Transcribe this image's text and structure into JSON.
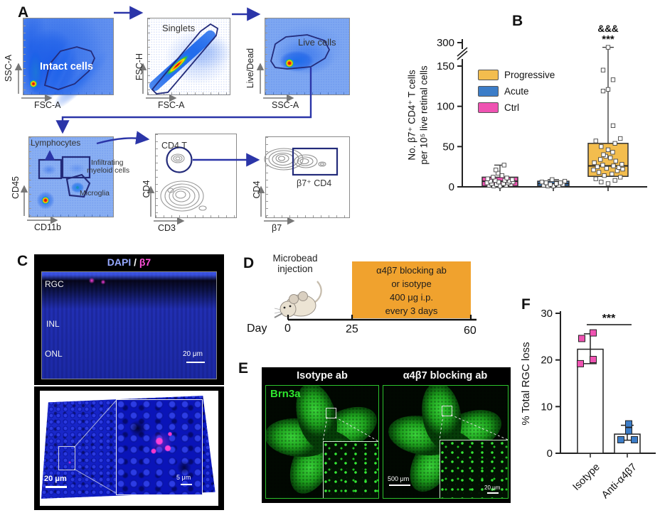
{
  "figure": {
    "panel_labels": {
      "A": "A",
      "B": "B",
      "C": "C",
      "D": "D",
      "E": "E",
      "F": "F"
    }
  },
  "panelA": {
    "plots": [
      {
        "gate": "Intact cells",
        "x": "FSC-A",
        "y": "SSC-A"
      },
      {
        "gate": "Singlets",
        "x": "FSC-A",
        "y": "FSC-H"
      },
      {
        "gate": "Live cells",
        "x": "SSC-A",
        "y": "Live/Dead"
      },
      {
        "gate": "Lymphocytes",
        "gate2a": "Infiltrating",
        "gate2b": "myeloid cells",
        "gate3": "Microglia",
        "x": "CD11b",
        "y": "CD45"
      },
      {
        "gate": "CD4 T",
        "x": "CD3",
        "y": "CD4"
      },
      {
        "gate": "β7⁺ CD4",
        "x": "β7",
        "y": "CD4"
      }
    ]
  },
  "panelB": {
    "ylabel_line1": "No. β7⁺ CD4⁺ T cells",
    "ylabel_line2": "per 10⁵ live retinal cells",
    "annotation_amp": "&&&",
    "annotation_star": "***"
  },
  "panelC": {
    "title_dapi": "DAPI",
    "title_sep": " / ",
    "title_b7": "β7",
    "layer_rgc": "RGC",
    "layer_inl": "INL",
    "layer_onl": "ONL",
    "scale_top": "20 μm",
    "scale_bottom": "20 μm",
    "scale_inset": "5 μm"
  },
  "panelD": {
    "injection": "Microbead\ninjection",
    "box_line1": "α4β7 blocking ab",
    "box_line2": "or isotype",
    "box_line3": "400 μg i.p.",
    "box_line4": "every 3 days",
    "axis": "Day",
    "t0": "0",
    "t1": "25",
    "t2": "60"
  },
  "panelE": {
    "left_title": "Isotype ab",
    "right_title": "α4β7 blocking ab",
    "stain": "Brn3a",
    "scale_main": "500 μm",
    "scale_inset": "20 μm"
  },
  "chart_data": [
    {
      "panel": "B",
      "type": "box",
      "ylabel": "No. β7⁺ CD4⁺ T cells per 10⁵ live retinal cells",
      "yticks": [
        0,
        50,
        100,
        150,
        300
      ],
      "axis_break_between": [
        150,
        300
      ],
      "legend": [
        {
          "label": "Progressive",
          "color": "#f3bd4e"
        },
        {
          "label": "Acute",
          "color": "#3c7dc8"
        },
        {
          "label": "Ctrl",
          "color": "#ef53b2"
        }
      ],
      "groups": [
        {
          "name": "Ctrl",
          "color": "#ef53b2",
          "q1": 1,
          "median": 7,
          "q3": 12,
          "whisker_low": 0,
          "whisker_high": 27,
          "points": [
            1,
            1,
            2,
            2,
            3,
            3,
            4,
            4,
            5,
            5,
            6,
            6,
            7,
            7,
            8,
            8,
            9,
            10,
            11,
            12,
            14,
            17,
            21,
            27
          ]
        },
        {
          "name": "Acute",
          "color": "#3c7dc8",
          "q1": 1,
          "median": 4,
          "q3": 7,
          "whisker_low": 0,
          "whisker_high": 9,
          "points": [
            1,
            1,
            2,
            2,
            3,
            3,
            4,
            5,
            5,
            6,
            7,
            9
          ]
        },
        {
          "name": "Progressive",
          "color": "#f3bd4e",
          "q1": 13,
          "median": 26,
          "q3": 54,
          "whisker_low": 3,
          "whisker_high": 270,
          "points": [
            4,
            6,
            8,
            10,
            12,
            14,
            16,
            18,
            20,
            21,
            22,
            23,
            24,
            25,
            26,
            27,
            28,
            30,
            32,
            34,
            36,
            38,
            40,
            43,
            46,
            50,
            54,
            57,
            60,
            76,
            119,
            121,
            133,
            145,
            270
          ]
        }
      ],
      "annotations": [
        "&&&",
        "***"
      ]
    },
    {
      "panel": "F",
      "type": "bar",
      "ylabel": "% Total RGC loss",
      "yticks": [
        0,
        10,
        20,
        30
      ],
      "ylim": [
        0,
        30
      ],
      "bars": [
        {
          "name": "Isotype",
          "value": 22.3,
          "err_low": 19.2,
          "err_high": 25.6,
          "point_color": "#ef53b2",
          "points": [
            24.6,
            25.8,
            19.2,
            20.1
          ]
        },
        {
          "name": "Anti-α4β7",
          "value": 4.1,
          "err_low": 2.8,
          "err_high": 6.0,
          "point_color": "#3c7dc8",
          "points": [
            6.3,
            4.8,
            2.9,
            2.9
          ]
        }
      ],
      "significance": "***"
    }
  ]
}
